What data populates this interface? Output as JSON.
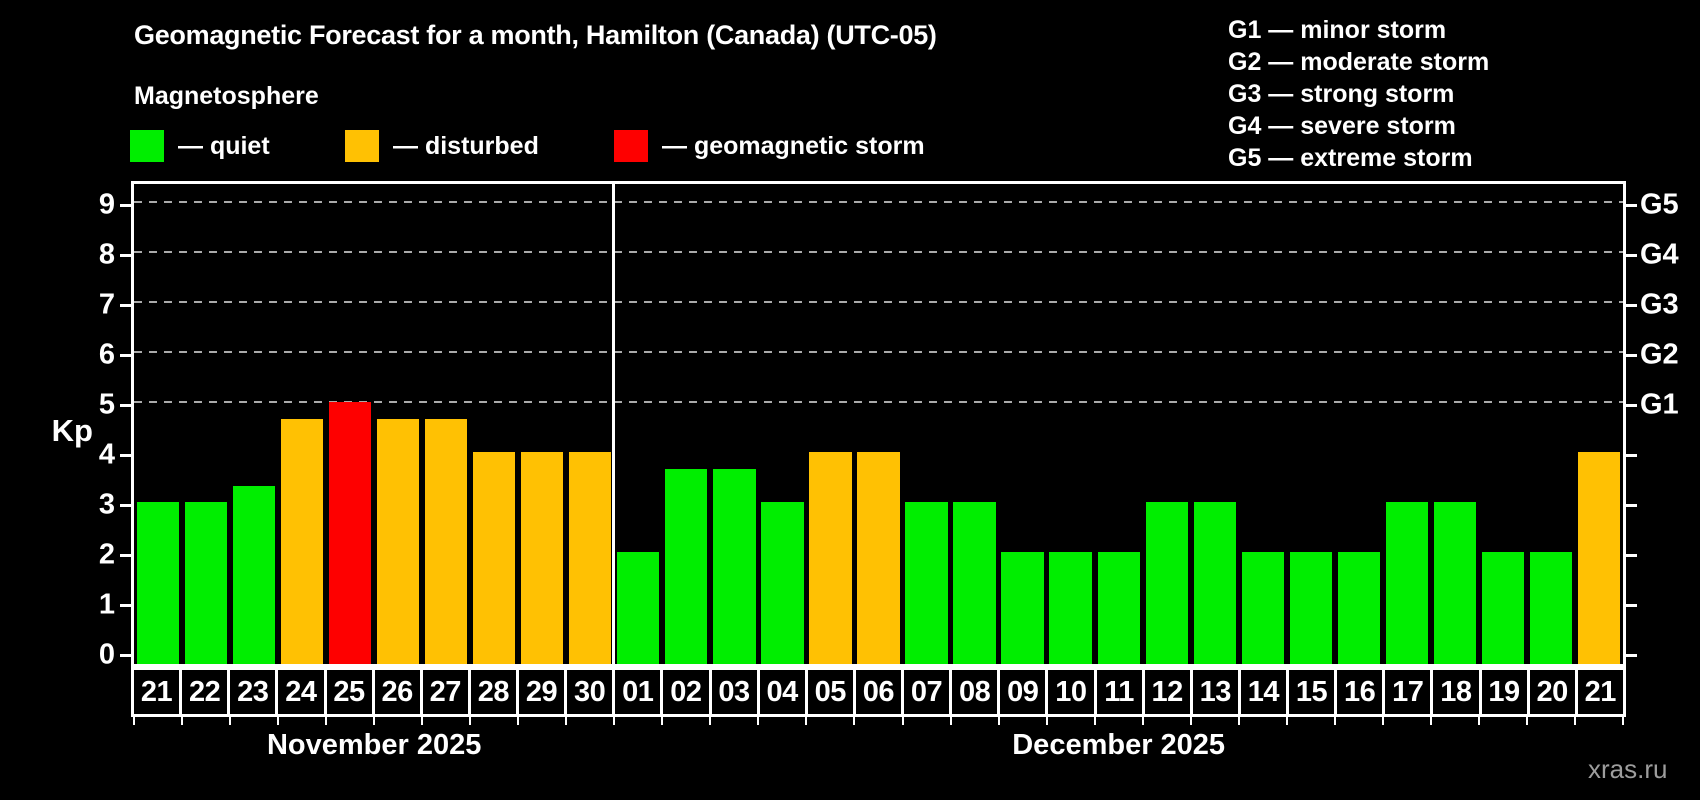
{
  "title": "Geomagnetic Forecast for a month, Hamilton (Canada) (UTC-05)",
  "subtitle": "Magnetosphere",
  "status_legend": {
    "items": [
      {
        "name": "quiet",
        "label": "— quiet",
        "status": "quiet"
      },
      {
        "name": "disturbed",
        "label": "— disturbed",
        "status": "disturbed"
      },
      {
        "name": "storm",
        "label": "— geomagnetic storm",
        "status": "storm"
      }
    ]
  },
  "g_scale_legend": [
    "G1 — minor storm",
    "G2 — moderate storm",
    "G3 — strong storm",
    "G4 — severe storm",
    "G5 — extreme storm"
  ],
  "y_axis": {
    "label": "Kp",
    "ticks": [
      0,
      1,
      2,
      3,
      4,
      5,
      6,
      7,
      8,
      9
    ]
  },
  "g_labels": [
    {
      "kp": 5,
      "label": "G1"
    },
    {
      "kp": 6,
      "label": "G2"
    },
    {
      "kp": 7,
      "label": "G3"
    },
    {
      "kp": 8,
      "label": "G4"
    },
    {
      "kp": 9,
      "label": "G5"
    }
  ],
  "colors": {
    "background": "#000000",
    "frame": "#ffffff",
    "grid": "#aaaaaa",
    "bar_quiet": "#00ee00",
    "bar_disturbed": "#ffc103",
    "bar_storm": "#fe0000",
    "watermark": "#9d9d9d"
  },
  "watermark": "xras.ru",
  "chart_data": {
    "type": "bar",
    "title": "Geomagnetic Forecast for a month, Hamilton (Canada) (UTC-05)",
    "xlabel": "",
    "ylabel": "Kp",
    "ylim": [
      0,
      9.6
    ],
    "grid_kp_levels": [
      5,
      6,
      7,
      8,
      9
    ],
    "legend_position": "top-left",
    "months": [
      {
        "label": "November 2025",
        "days": [
          {
            "day": "21",
            "kp": 3,
            "status": "quiet"
          },
          {
            "day": "22",
            "kp": 3,
            "status": "quiet"
          },
          {
            "day": "23",
            "kp": 3.33,
            "status": "quiet"
          },
          {
            "day": "24",
            "kp": 4.67,
            "status": "disturbed"
          },
          {
            "day": "25",
            "kp": 5,
            "status": "storm"
          },
          {
            "day": "26",
            "kp": 4.67,
            "status": "disturbed"
          },
          {
            "day": "27",
            "kp": 4.67,
            "status": "disturbed"
          },
          {
            "day": "28",
            "kp": 4,
            "status": "disturbed"
          },
          {
            "day": "29",
            "kp": 4,
            "status": "disturbed"
          },
          {
            "day": "30",
            "kp": 4,
            "status": "disturbed"
          }
        ]
      },
      {
        "label": "December 2025",
        "days": [
          {
            "day": "01",
            "kp": 2,
            "status": "quiet"
          },
          {
            "day": "02",
            "kp": 3.67,
            "status": "quiet"
          },
          {
            "day": "03",
            "kp": 3.67,
            "status": "quiet"
          },
          {
            "day": "04",
            "kp": 3,
            "status": "quiet"
          },
          {
            "day": "05",
            "kp": 4,
            "status": "disturbed"
          },
          {
            "day": "06",
            "kp": 4,
            "status": "disturbed"
          },
          {
            "day": "07",
            "kp": 3,
            "status": "quiet"
          },
          {
            "day": "08",
            "kp": 3,
            "status": "quiet"
          },
          {
            "day": "09",
            "kp": 2,
            "status": "quiet"
          },
          {
            "day": "10",
            "kp": 2,
            "status": "quiet"
          },
          {
            "day": "11",
            "kp": 2,
            "status": "quiet"
          },
          {
            "day": "12",
            "kp": 3,
            "status": "quiet"
          },
          {
            "day": "13",
            "kp": 3,
            "status": "quiet"
          },
          {
            "day": "14",
            "kp": 2,
            "status": "quiet"
          },
          {
            "day": "15",
            "kp": 2,
            "status": "quiet"
          },
          {
            "day": "16",
            "kp": 2,
            "status": "quiet"
          },
          {
            "day": "17",
            "kp": 3,
            "status": "quiet"
          },
          {
            "day": "18",
            "kp": 3,
            "status": "quiet"
          },
          {
            "day": "19",
            "kp": 2,
            "status": "quiet"
          },
          {
            "day": "20",
            "kp": 2,
            "status": "quiet"
          },
          {
            "day": "21",
            "kp": 4,
            "status": "disturbed"
          }
        ]
      }
    ]
  }
}
